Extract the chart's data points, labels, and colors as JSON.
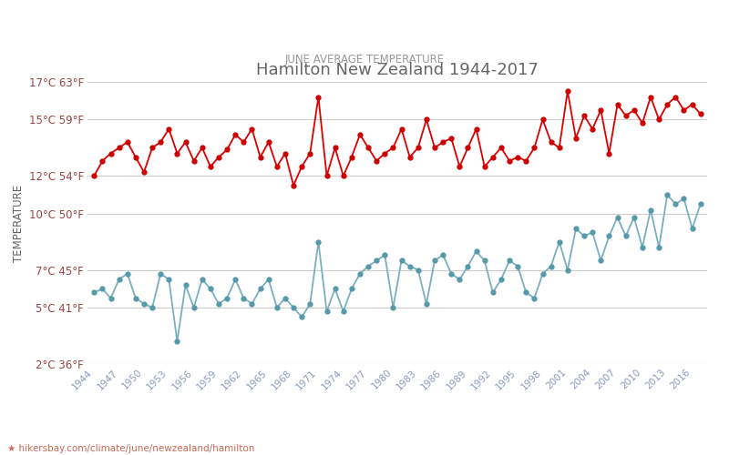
{
  "title": "Hamilton New Zealand 1944-2017",
  "subtitle": "JUNE AVERAGE TEMPERATURE",
  "ylabel": "TEMPERATURE",
  "xlabel_url": "★ hikersbay.com/climate/june/newzealand/hamilton",
  "ylim": [
    2,
    17
  ],
  "yticks_c": [
    2,
    5,
    7,
    10,
    12,
    15,
    17
  ],
  "yticks_f": [
    36,
    41,
    45,
    50,
    54,
    59,
    63
  ],
  "years": [
    1944,
    1945,
    1946,
    1947,
    1948,
    1949,
    1950,
    1951,
    1952,
    1953,
    1954,
    1955,
    1956,
    1957,
    1958,
    1959,
    1960,
    1961,
    1962,
    1963,
    1964,
    1965,
    1966,
    1967,
    1968,
    1969,
    1970,
    1971,
    1972,
    1973,
    1974,
    1975,
    1976,
    1977,
    1978,
    1979,
    1980,
    1981,
    1982,
    1983,
    1984,
    1985,
    1986,
    1987,
    1988,
    1989,
    1990,
    1991,
    1992,
    1993,
    1994,
    1995,
    1996,
    1997,
    1998,
    1999,
    2000,
    2001,
    2002,
    2003,
    2004,
    2005,
    2006,
    2007,
    2008,
    2009,
    2010,
    2011,
    2012,
    2013,
    2014,
    2015,
    2016,
    2017
  ],
  "day_temps": [
    12.0,
    12.8,
    13.2,
    13.5,
    13.8,
    13.0,
    12.2,
    13.5,
    13.8,
    14.5,
    13.2,
    13.8,
    12.8,
    13.5,
    12.5,
    13.0,
    13.4,
    14.2,
    13.8,
    14.5,
    13.0,
    13.8,
    12.5,
    13.2,
    11.5,
    12.5,
    13.2,
    16.2,
    12.0,
    13.5,
    12.0,
    13.0,
    14.2,
    13.5,
    12.8,
    13.2,
    13.5,
    14.5,
    13.0,
    13.5,
    15.0,
    13.5,
    13.8,
    14.0,
    12.5,
    13.5,
    14.5,
    12.5,
    13.0,
    13.5,
    12.8,
    13.0,
    12.8,
    13.5,
    15.0,
    13.8,
    13.5,
    16.5,
    14.0,
    15.2,
    14.5,
    15.5,
    13.2,
    15.8,
    15.2,
    15.5,
    14.8,
    16.2,
    15.0,
    15.8,
    16.2,
    15.5,
    15.8,
    15.3
  ],
  "night_temps": [
    5.8,
    6.0,
    5.5,
    6.5,
    6.8,
    5.5,
    5.2,
    5.0,
    6.8,
    6.5,
    3.2,
    6.2,
    5.0,
    6.5,
    6.0,
    5.2,
    5.5,
    6.5,
    5.5,
    5.2,
    6.0,
    6.5,
    5.0,
    5.5,
    5.0,
    4.5,
    5.2,
    8.5,
    4.8,
    6.0,
    4.8,
    6.0,
    6.8,
    7.2,
    7.5,
    7.8,
    5.0,
    7.5,
    7.2,
    7.0,
    5.2,
    7.5,
    7.8,
    6.8,
    6.5,
    7.2,
    8.0,
    7.5,
    5.8,
    6.5,
    7.5,
    7.2,
    5.8,
    5.5,
    6.8,
    7.2,
    8.5,
    7.0,
    9.2,
    8.8,
    9.0,
    7.5,
    8.8,
    9.8,
    8.8,
    9.8,
    8.2,
    10.2,
    8.2,
    11.0,
    10.5,
    10.8,
    9.2,
    10.5
  ],
  "day_color": "#dd0000",
  "night_color": "#7aafc0",
  "day_dot_color": "#cc0000",
  "night_dot_color": "#5599aa",
  "bg_color": "#ffffff",
  "grid_color": "#cccccc",
  "title_color": "#666666",
  "subtitle_color": "#999999",
  "ylabel_color": "#666666",
  "tick_color": "#8899bb",
  "ytick_color": "#994444",
  "xtick_years": [
    1944,
    1947,
    1950,
    1953,
    1956,
    1959,
    1962,
    1965,
    1968,
    1971,
    1974,
    1977,
    1980,
    1983,
    1986,
    1989,
    1992,
    1995,
    1998,
    2001,
    2004,
    2007,
    2010,
    2013,
    2016
  ],
  "legend_night_color": "#5599aa",
  "legend_day_color": "#cc0000"
}
